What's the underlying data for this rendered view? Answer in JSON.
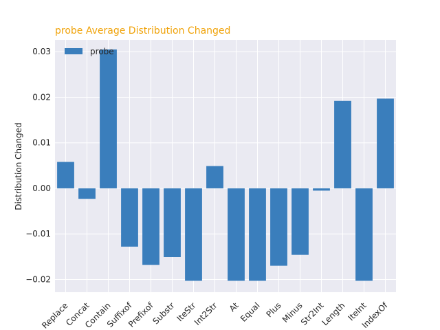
{
  "chart_data": {
    "type": "bar",
    "title": "probe Average Distribution Changed",
    "xlabel": "",
    "ylabel": "Distribution Changed",
    "categories": [
      "Replace",
      "Concat",
      "Contain",
      "Suffixof",
      "Prefixof",
      "Substr",
      "IteStr",
      "Int2Str",
      "At",
      "Equal",
      "Plus",
      "Minus",
      "Str2Int",
      "Length",
      "IteInt",
      "IndexOf"
    ],
    "series": [
      {
        "name": "probe",
        "values": [
          0.0058,
          -0.0023,
          0.0305,
          -0.0128,
          -0.0168,
          -0.0151,
          -0.0203,
          0.0049,
          -0.0203,
          -0.0203,
          -0.017,
          -0.0146,
          -0.0005,
          0.0192,
          -0.0203,
          0.0197
        ]
      }
    ],
    "ylim": [
      -0.0228,
      0.0326
    ],
    "yticks": [
      -0.02,
      -0.01,
      0.0,
      0.01,
      0.02,
      0.03
    ],
    "ytick_labels": [
      "−0.02",
      "−0.01",
      "0.00",
      "0.01",
      "0.02",
      "0.03"
    ],
    "grid": true,
    "legend_position": "top-left",
    "colors": {
      "bar": "#3a7ebc",
      "plot_background": "#eaeaf2",
      "grid": "#ffffff",
      "title": "#f0a30a"
    }
  }
}
